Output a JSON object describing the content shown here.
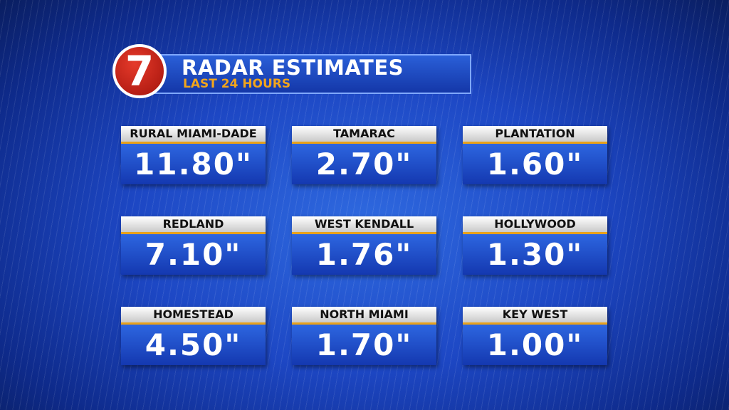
{
  "header": {
    "logo": "7",
    "title": "RADAR ESTIMATES",
    "subtitle": "LAST 24 HOURS"
  },
  "tiles": [
    {
      "location": "RURAL MIAMI-DADE",
      "amount": "11.80\""
    },
    {
      "location": "TAMARAC",
      "amount": "2.70\""
    },
    {
      "location": "PLANTATION",
      "amount": "1.60\""
    },
    {
      "location": "REDLAND",
      "amount": "7.10\""
    },
    {
      "location": "WEST KENDALL",
      "amount": "1.76\""
    },
    {
      "location": "HOLLYWOOD",
      "amount": "1.30\""
    },
    {
      "location": "HOMESTEAD",
      "amount": "4.50\""
    },
    {
      "location": "NORTH MIAMI",
      "amount": "1.70\""
    },
    {
      "location": "KEY WEST",
      "amount": "1.00\""
    }
  ]
}
